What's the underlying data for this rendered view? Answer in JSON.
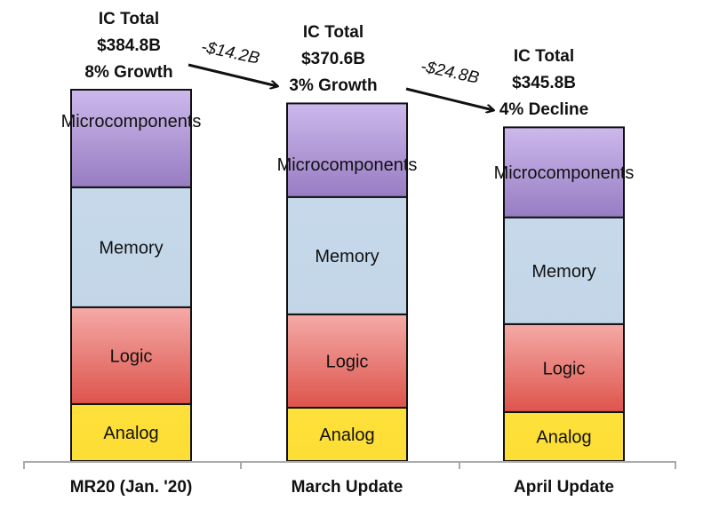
{
  "chart_data": {
    "type": "bar",
    "stacked": true,
    "title": "",
    "xlabel": "",
    "ylabel": "",
    "categories": [
      "MR20 (Jan. '20)",
      "March Update",
      "April Update"
    ],
    "ylim": [
      0,
      400
    ],
    "grid": false,
    "legend": "none (segment labels inside bars)",
    "series": [
      {
        "name": "Analog",
        "values": [
          59.0,
          55.3,
          50.7
        ],
        "color": "#fde03a"
      },
      {
        "name": "Logic",
        "values": [
          100.4,
          96.7,
          91.2
        ],
        "color": "#e9716b"
      },
      {
        "name": "Memory",
        "values": [
          124.3,
          121.6,
          110.6
        ],
        "color": "#c5d8ea"
      },
      {
        "name": "Microcomponents",
        "values": [
          101.1,
          97.0,
          93.3
        ],
        "color": "#ac93d4"
      }
    ],
    "annotations": {
      "totals": [
        [
          "IC Total",
          "$384.8B",
          "8% Growth"
        ],
        [
          "IC Total",
          "$370.6B",
          "3% Growth"
        ],
        [
          "IC Total",
          "$345.8B",
          "4% Decline"
        ]
      ],
      "deltas": [
        "-$14.2B",
        "-$24.8B"
      ]
    }
  }
}
